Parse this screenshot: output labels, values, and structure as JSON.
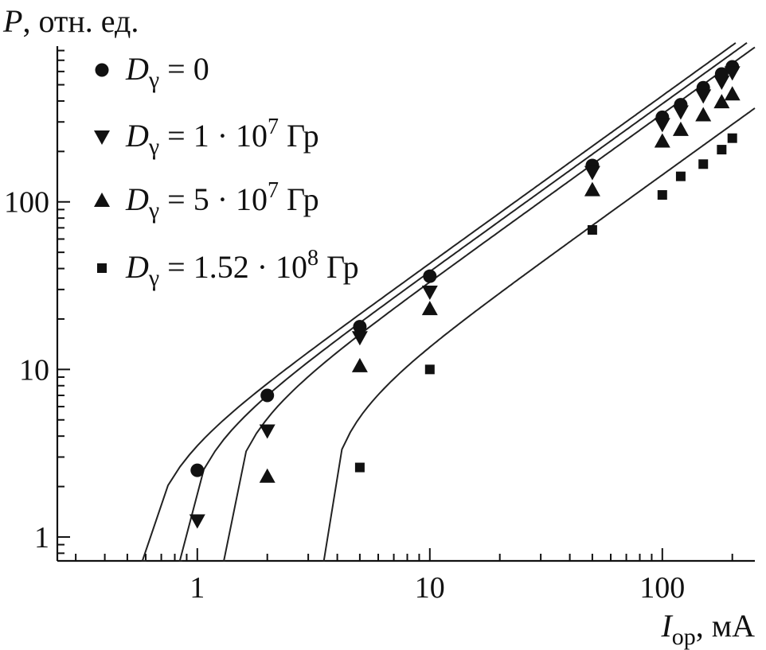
{
  "chart_data": {
    "type": "scatter",
    "xlabel": {
      "symbol": "I",
      "subscript": "ор",
      "unit": ", мА"
    },
    "ylabel": {
      "symbol": "P",
      "unit": ", отн. ед."
    },
    "xscale": "log",
    "yscale": "log",
    "xlim": [
      0.25,
      250
    ],
    "ylim": [
      0.72,
      850
    ],
    "x_ticks": [
      1,
      10,
      100
    ],
    "x_tick_labels": [
      "1",
      "10",
      "100"
    ],
    "y_ticks": [
      1,
      10,
      100
    ],
    "y_tick_labels": [
      "1",
      "10",
      "100"
    ],
    "grid": false,
    "legend_position": "top-left",
    "series": [
      {
        "legend": {
          "symbol": "D",
          "subscript": "γ",
          "text": " = 0",
          "sup": "",
          "suffix": ""
        },
        "marker": "circle",
        "x": [
          1,
          2,
          5,
          10,
          50,
          100,
          120,
          150,
          180,
          200
        ],
        "y": [
          2.5,
          7,
          18,
          36,
          165,
          320,
          380,
          480,
          580,
          640
        ],
        "fit": {
          "x0": 0.58,
          "k": 4.3,
          "xmax": 250
        }
      },
      {
        "legend": {
          "symbol": "D",
          "subscript": "γ",
          "text": " = 1 · 10",
          "sup": "7",
          "suffix": " Гр"
        },
        "marker": "triangle-down",
        "x": [
          1,
          2,
          5,
          10,
          50,
          100,
          120,
          150,
          180,
          200
        ],
        "y": [
          1.25,
          4.3,
          15.5,
          29,
          150,
          290,
          345,
          430,
          520,
          590
        ],
        "fit": {
          "x0": 0.84,
          "k": 3.85,
          "xmax": 250
        }
      },
      {
        "legend": {
          "symbol": "D",
          "subscript": "γ",
          "text": " = 5 · 10",
          "sup": "7",
          "suffix": " Гр"
        },
        "marker": "triangle-up",
        "x": [
          2,
          5,
          10,
          50,
          100,
          120,
          150,
          180,
          200
        ],
        "y": [
          2.3,
          10.5,
          23,
          118,
          230,
          270,
          330,
          395,
          440
        ],
        "fit": {
          "x0": 1.3,
          "k": 3.35,
          "xmax": 250
        }
      },
      {
        "legend": {
          "symbol": "D",
          "subscript": "γ",
          "text": " = 1.52 · 10",
          "sup": "8",
          "suffix": " Гр"
        },
        "marker": "square",
        "x": [
          5,
          10,
          50,
          100,
          120,
          150,
          180,
          200
        ],
        "y": [
          2.6,
          10,
          68,
          110,
          142,
          168,
          205,
          240
        ],
        "fit": {
          "x0": 3.5,
          "k": 1.45,
          "xmax": 250
        }
      }
    ]
  }
}
